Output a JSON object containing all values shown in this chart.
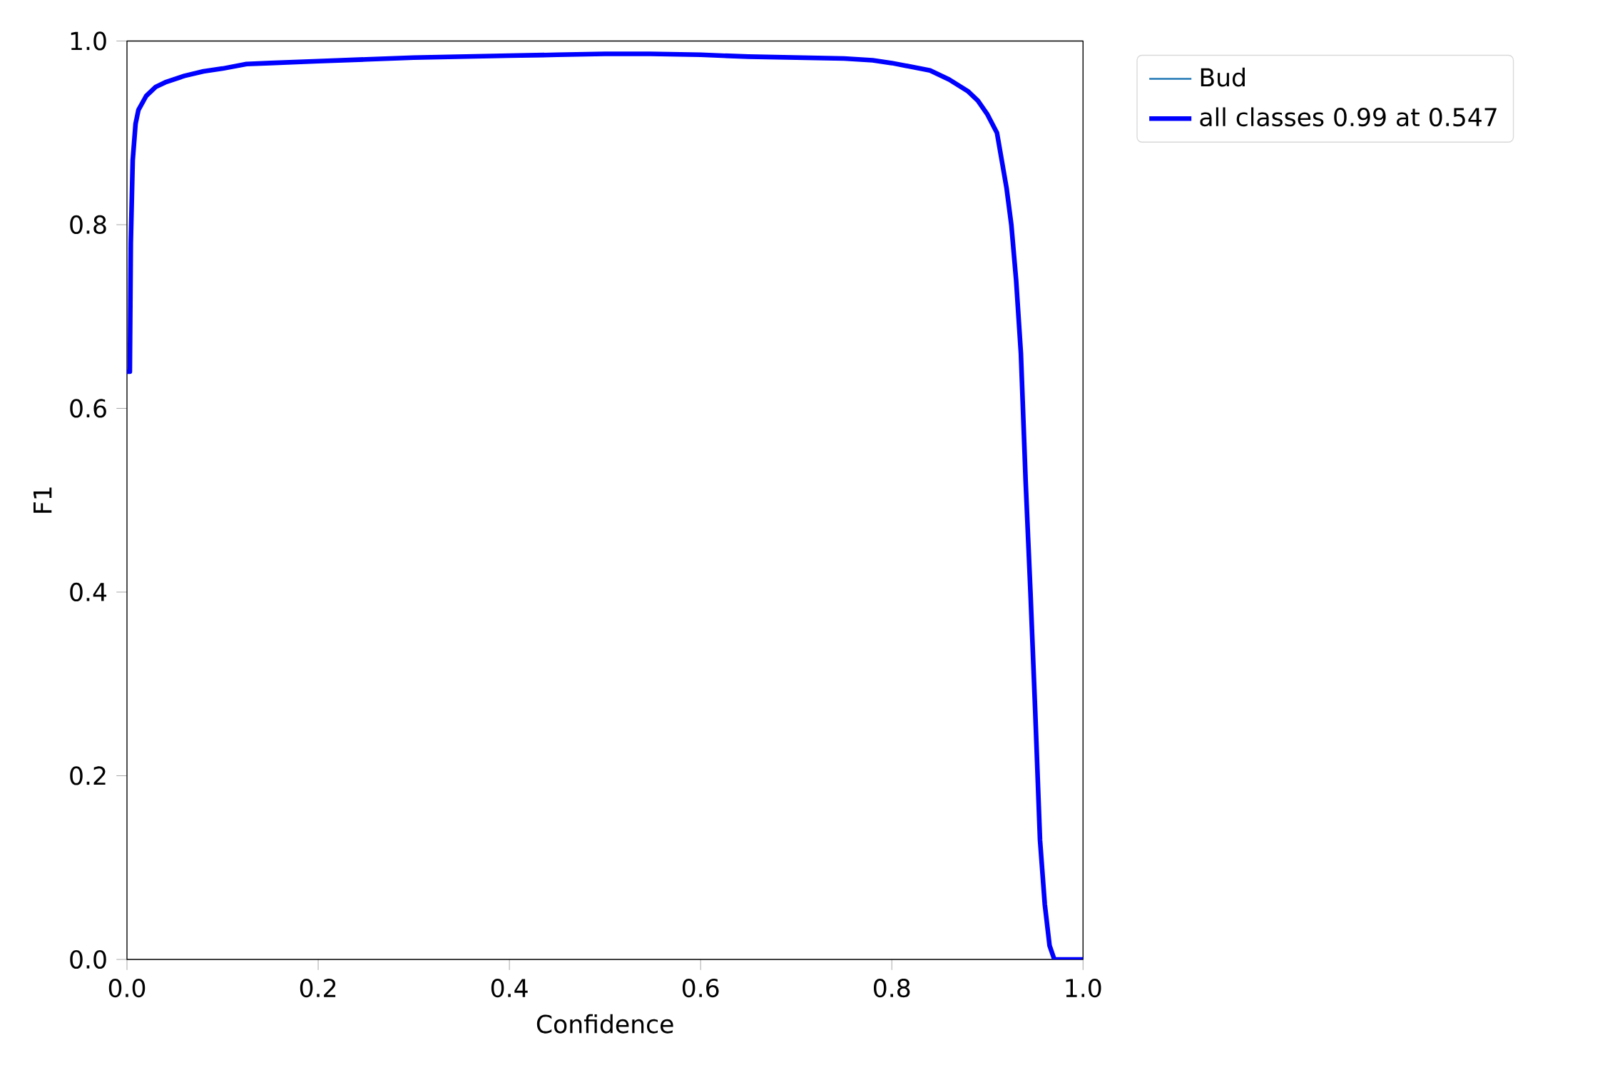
{
  "chart_data": {
    "type": "line",
    "xlabel": "Confidence",
    "ylabel": "F1",
    "x": [
      0.0,
      0.003,
      0.004,
      0.006,
      0.009,
      0.012,
      0.02,
      0.03,
      0.04,
      0.06,
      0.08,
      0.1,
      0.125,
      0.15,
      0.2,
      0.25,
      0.3,
      0.35,
      0.4,
      0.45,
      0.5,
      0.547,
      0.6,
      0.65,
      0.7,
      0.75,
      0.78,
      0.8,
      0.82,
      0.84,
      0.86,
      0.88,
      0.89,
      0.9,
      0.91,
      0.92,
      0.925,
      0.93,
      0.935,
      0.94,
      0.945,
      0.95,
      0.955,
      0.96,
      0.965,
      0.97,
      1.0
    ],
    "series": [
      {
        "name": "Bud",
        "color": "#1f77b4",
        "values": [
          null,
          null,
          null,
          null,
          null,
          null,
          null,
          null,
          null,
          null,
          null,
          null,
          null,
          null,
          null,
          null,
          null,
          null,
          null,
          null,
          null,
          null,
          null,
          null,
          null,
          null,
          null,
          null,
          null,
          null,
          null,
          null,
          null,
          null,
          null,
          null,
          null,
          null,
          null,
          null,
          null,
          null,
          null,
          null,
          null,
          null,
          null
        ]
      },
      {
        "name": "all classes 0.99 at 0.547",
        "color": "#0000ff",
        "values": [
          0.64,
          0.64,
          0.78,
          0.87,
          0.91,
          0.925,
          0.94,
          0.95,
          0.955,
          0.962,
          0.967,
          0.97,
          0.975,
          0.976,
          0.978,
          0.98,
          0.982,
          0.983,
          0.984,
          0.985,
          0.986,
          0.986,
          0.985,
          0.983,
          0.982,
          0.981,
          0.979,
          0.976,
          0.972,
          0.968,
          0.958,
          0.945,
          0.935,
          0.92,
          0.9,
          0.84,
          0.8,
          0.74,
          0.66,
          0.52,
          0.4,
          0.27,
          0.13,
          0.06,
          0.015,
          0.0,
          0.0
        ]
      }
    ],
    "xlim": [
      0,
      1
    ],
    "ylim": [
      0,
      1
    ],
    "xticks": [
      {
        "value": 0,
        "label": "0.0"
      },
      {
        "value": 0.2,
        "label": "0.2"
      },
      {
        "value": 0.4,
        "label": "0.4"
      },
      {
        "value": 0.6,
        "label": "0.6"
      },
      {
        "value": 0.8,
        "label": "0.8"
      },
      {
        "value": 1,
        "label": "1.0"
      }
    ],
    "yticks": [
      {
        "value": 0,
        "label": "0.0"
      },
      {
        "value": 0.2,
        "label": "0.2"
      },
      {
        "value": 0.4,
        "label": "0.4"
      },
      {
        "value": 0.6,
        "label": "0.6"
      },
      {
        "value": 0.8,
        "label": "0.8"
      },
      {
        "value": 1,
        "label": "1.0"
      }
    ],
    "grid": false,
    "legend": "top right",
    "marker": "none",
    "line_style": "solid"
  }
}
